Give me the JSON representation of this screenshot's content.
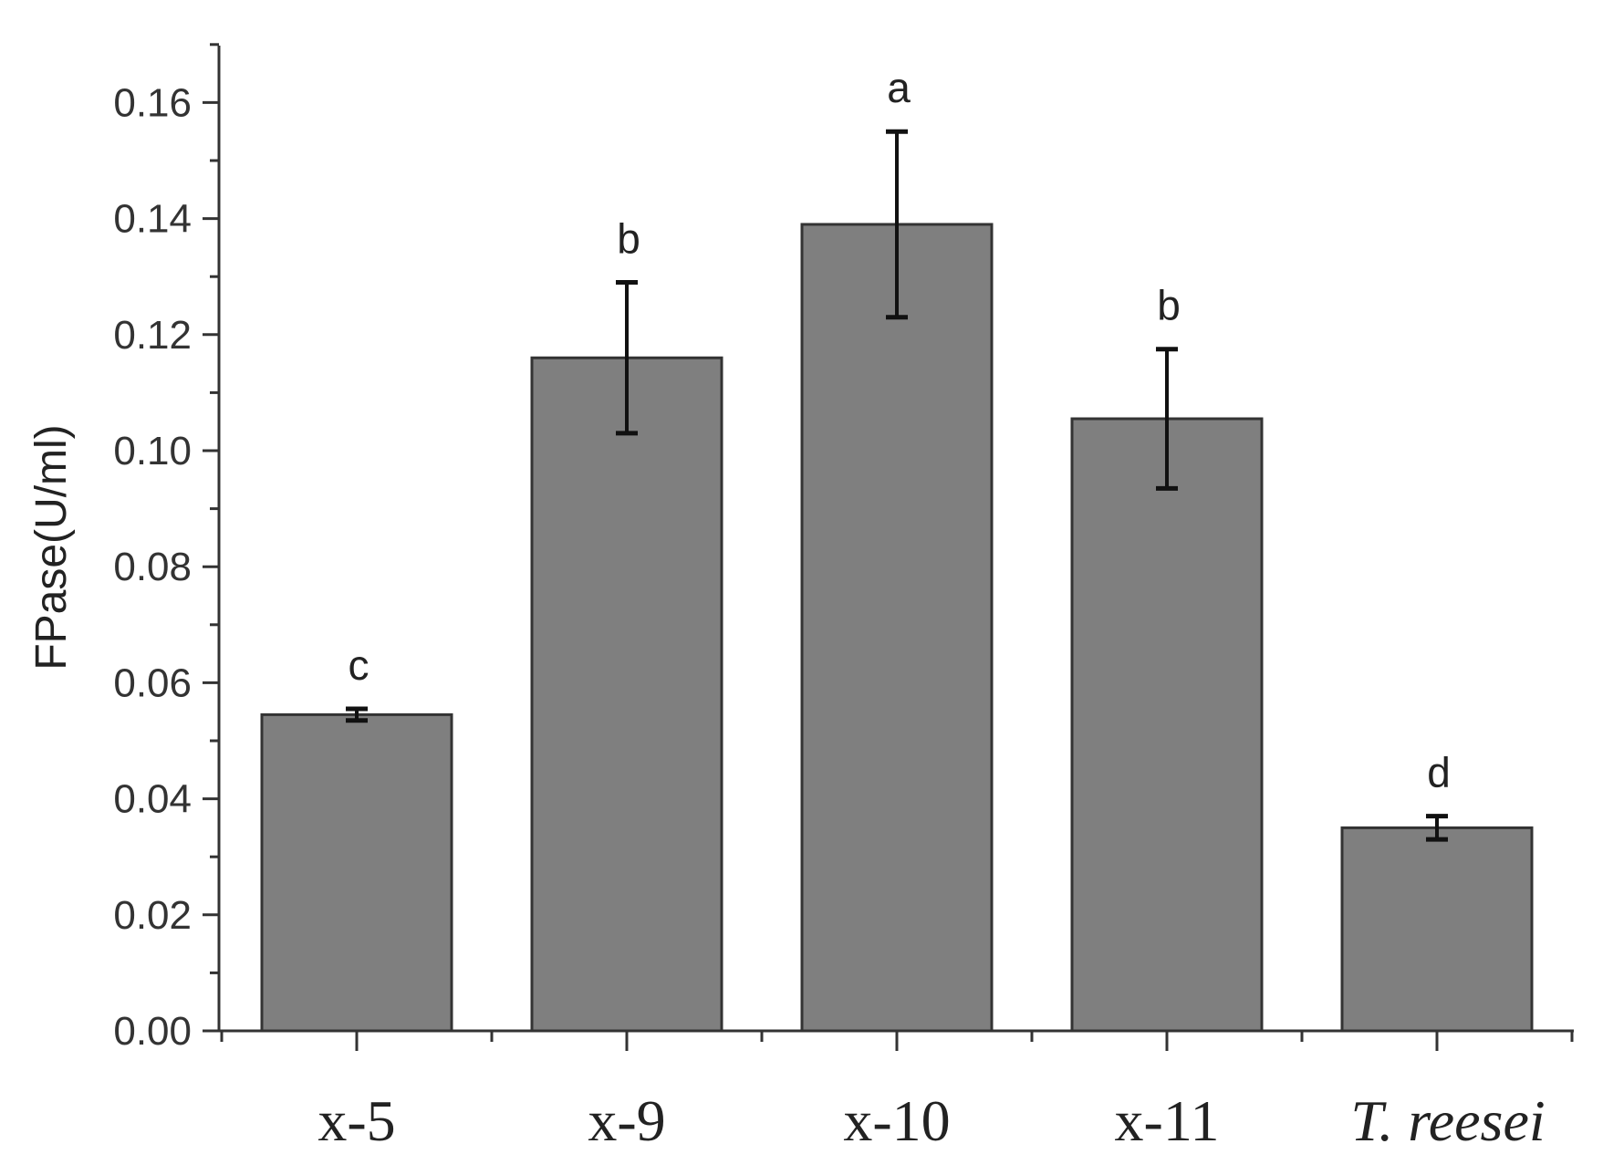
{
  "chart_data": {
    "type": "bar",
    "title": "",
    "xlabel": "",
    "ylabel": "FPase(U/ml)",
    "ylim": [
      0,
      0.17
    ],
    "yticks": [
      "0.00",
      "0.02",
      "0.04",
      "0.06",
      "0.08",
      "0.10",
      "0.12",
      "0.14",
      "0.16"
    ],
    "categories": [
      "x-5",
      "x-9",
      "x-10",
      "x-11",
      "T. reesei"
    ],
    "italic_categories": [
      "T. reesei"
    ],
    "values": [
      0.0545,
      0.116,
      0.139,
      0.1055,
      0.035
    ],
    "errors": [
      0.001,
      0.013,
      0.016,
      0.012,
      0.002
    ],
    "significance": [
      "c",
      "b",
      "a",
      "b",
      "d"
    ],
    "grid": false,
    "legend": "none",
    "colors": {
      "bar_fill": "#7f7f7f",
      "bar_stroke": "#333333",
      "axis": "#333333",
      "error_bar": "#111111"
    }
  }
}
